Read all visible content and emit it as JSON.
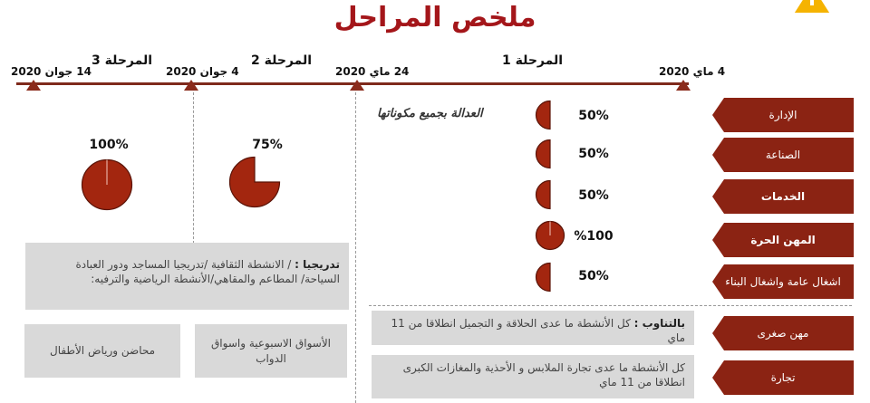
{
  "title": "ملخص المراحل",
  "warning_icon": "warning-icon",
  "timeline": {
    "dates": {
      "d14jun": "14 جوان 2020",
      "d4jun": "4 جوان 2020",
      "d24may": "24 ماي 2020",
      "d4may": "4 ماي 2020"
    },
    "phases": {
      "p3": "المرحلة 3",
      "p2": "المرحلة 2",
      "p1": "المرحلة 1"
    },
    "color": "#8b2b1b"
  },
  "phase1": {
    "justice_label": "العدالة بجميع مكوناتها",
    "sectors": [
      {
        "label": "الإدارة",
        "percent_label": "50%",
        "fraction": 0.5
      },
      {
        "label": "الصناعة",
        "percent_label": "50%",
        "fraction": 0.5
      },
      {
        "label": "الخدمات",
        "percent_label": "50%",
        "fraction": 0.5
      },
      {
        "label": "المهن الحرة",
        "percent_label": "%100",
        "fraction": 1.0
      },
      {
        "label": "اشغال عامة واشغال البناء",
        "percent_label": "50%",
        "fraction": 0.5
      }
    ],
    "trades": [
      {
        "label": "مهن صغرى",
        "note_bold": "بالتناوب :",
        "note": " كل الأنشطة ما عدى الحلاقة و التجميل انطلاقا من 11 ماي"
      },
      {
        "label": "تجارة",
        "note_bold": "",
        "note": "كل الأنشطة ما عدى تجارة الملابس و الأحذية والمغازات الكبرى انطلاقا من 11 ماي"
      }
    ]
  },
  "phase2": {
    "percent_label": "75%",
    "fraction": 0.75
  },
  "phase3": {
    "percent_label": "100%",
    "fraction": 1.0
  },
  "gradual": {
    "bold": "تدريجيا :",
    "text": " / الانشطة الثقافية /تدريجيا المساجد ودور العبادة السياحة/ المطاعم والمقاهي/الأنشطة الرياضية والترفيه:"
  },
  "boxes": {
    "markets": "الأسواق الاسبوعية واسواق الدواب",
    "nurseries": "محاضن ورياض الأطفال"
  },
  "colors": {
    "accent": "#8b2313",
    "pie_fill": "#a3260f",
    "grey_box": "#d9d9d9",
    "title": "#a4161a"
  }
}
